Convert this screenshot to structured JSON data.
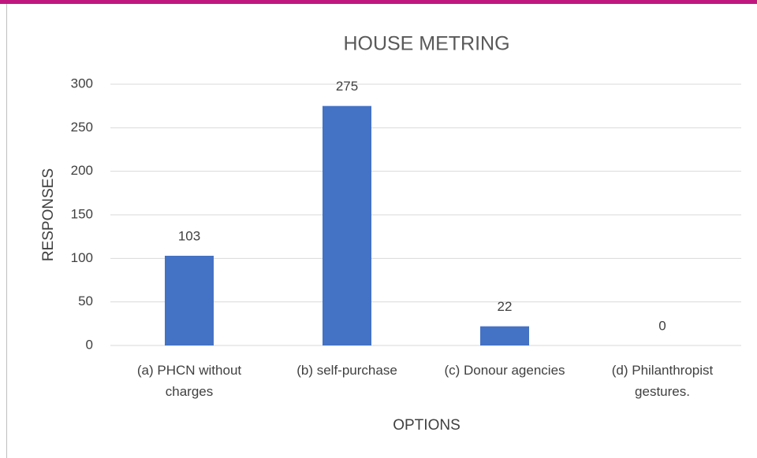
{
  "chart_data": {
    "type": "bar",
    "title": "HOUSE METRING",
    "categories": [
      "(a) PHCN without charges",
      "(b) self-purchase",
      "(c) Donour agencies",
      "(d) Philanthropist gestures."
    ],
    "values": [
      103,
      275,
      22,
      0
    ],
    "color": "#4472c4",
    "xlabel": "OPTIONS",
    "ylabel": "RESPONSES",
    "ylim": [
      0,
      300
    ],
    "yticks": [
      0,
      50,
      100,
      150,
      200,
      250,
      300
    ],
    "grid": true
  }
}
